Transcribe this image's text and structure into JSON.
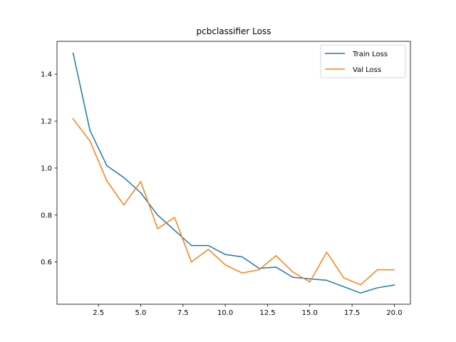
{
  "chart_data": {
    "type": "line",
    "title": "pcbclassifier Loss",
    "xlabel": "",
    "ylabel": "",
    "xlim": [
      0.05,
      20.95
    ],
    "ylim": [
      0.42,
      1.54
    ],
    "xticks": [
      2.5,
      5.0,
      7.5,
      10.0,
      12.5,
      15.0,
      17.5,
      20.0
    ],
    "xtick_labels": [
      "2.5",
      "5.0",
      "7.5",
      "10.0",
      "12.5",
      "15.0",
      "17.5",
      "20.0"
    ],
    "yticks": [
      0.6,
      0.8,
      1.0,
      1.2,
      1.4
    ],
    "ytick_labels": [
      "0.6",
      "0.8",
      "1.0",
      "1.2",
      "1.4"
    ],
    "grid": false,
    "legend_position": "top-right",
    "x": [
      1,
      2,
      3,
      4,
      5,
      6,
      7,
      8,
      9,
      10,
      11,
      12,
      13,
      14,
      15,
      16,
      17,
      18,
      19,
      20
    ],
    "series": [
      {
        "name": "Train Loss",
        "color": "#1f77b4",
        "values": [
          1.49,
          1.16,
          1.01,
          0.96,
          0.895,
          0.8,
          0.735,
          0.67,
          0.67,
          0.632,
          0.622,
          0.573,
          0.578,
          0.535,
          0.528,
          0.522,
          0.495,
          0.468,
          0.49,
          0.502
        ]
      },
      {
        "name": "Val Loss",
        "color": "#ff7f0e",
        "values": [
          1.21,
          1.115,
          0.945,
          0.843,
          0.943,
          0.742,
          0.79,
          0.6,
          0.654,
          0.588,
          0.553,
          0.567,
          0.627,
          0.557,
          0.515,
          0.642,
          0.533,
          0.503,
          0.567,
          0.567
        ]
      }
    ]
  }
}
